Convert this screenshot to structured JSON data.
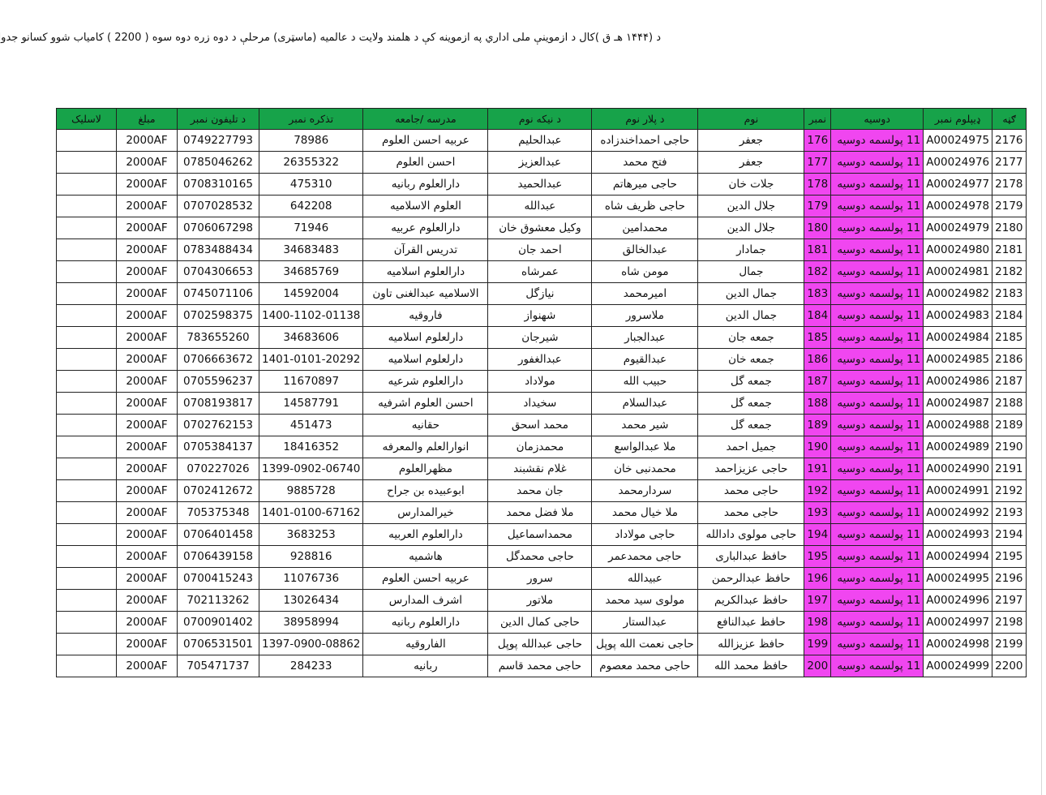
{
  "title": "د (۱۴۴۴ هـ ق )کال د ازموینې ملی اداري په ازموینه کې د هلمند ولایت د عالمیه (ماسټری) مرحلې  د دوه زره دوه سوه ( 2200 ) کامیاب شوو کسانو جدول",
  "colors": {
    "header": "#17a34a",
    "highlight": "#f046f0"
  },
  "headers": [
    "ګڼه",
    "ډیپلوم نمبر",
    "دوسیه",
    "نمبر",
    "نوم",
    "د پلار نوم",
    "د نیکه نوم",
    "مدرسه /جامعه",
    "تذکره نمبر",
    "د تلیفون نمبر",
    "مبلغ",
    "لاسلیک"
  ],
  "rows": [
    [
      "2176",
      "A00024975",
      "11 پولسمه دوسیه",
      "176",
      "جعفر",
      "حاجی احمداخندزاده",
      "عبدالحلیم",
      "عربیه احسن العلوم",
      "78986",
      "0749227793",
      "2000AF",
      ""
    ],
    [
      "2177",
      "A00024976",
      "11 پولسمه دوسیه",
      "177",
      "جعفر",
      "فتح محمد",
      "عبدالعزیز",
      "احسن العلوم",
      "26355322",
      "0785046262",
      "2000AF",
      ""
    ],
    [
      "2178",
      "A00024977",
      "11 پولسمه دوسیه",
      "178",
      "جلات خان",
      "حاجی میرهاتم",
      "عبدالحمید",
      "دارالعلوم ربانیه",
      "475310",
      "0708310165",
      "2000AF",
      ""
    ],
    [
      "2179",
      "A00024978",
      "11 پولسمه دوسیه",
      "179",
      "جلال الدین",
      "حاجی ظریف شاه",
      "عبدالله",
      "العلوم الاسلامیه",
      "642208",
      "0707028532",
      "2000AF",
      ""
    ],
    [
      "2180",
      "A00024979",
      "11 پولسمه دوسیه",
      "180",
      "جلال الدین",
      "محمدامین",
      "وکیل معشوق خان",
      "دارالعلوم عربیه",
      "71946",
      "0706067298",
      "2000AF",
      ""
    ],
    [
      "2181",
      "A00024980",
      "11 پولسمه دوسیه",
      "181",
      "جمادار",
      "عبدالخالق",
      "احمد جان",
      "تدریس القرآن",
      "34683483",
      "0783488434",
      "2000AF",
      ""
    ],
    [
      "2182",
      "A00024981",
      "11 پولسمه دوسیه",
      "182",
      "جمال",
      "مومن شاه",
      "عمرشاه",
      "دارالعلوم اسلامیه",
      "34685769",
      "0704306653",
      "2000AF",
      ""
    ],
    [
      "2183",
      "A00024982",
      "11 پولسمه دوسیه",
      "183",
      "جمال الدین",
      "امیرمحمد",
      "نیازگل",
      "الاسلامیه عبدالغنی تاون",
      "14592004",
      "0745071106",
      "2000AF",
      ""
    ],
    [
      "2184",
      "A00024983",
      "11 پولسمه دوسیه",
      "184",
      "جمال الدین",
      "ملاسرور",
      "شهنواز",
      "فاروقیه",
      "1400-1102-01138",
      "0702598375",
      "2000AF",
      ""
    ],
    [
      "2185",
      "A00024984",
      "11 پولسمه دوسیه",
      "185",
      "جمعه جان",
      "عبدالجبار",
      "شیرجان",
      "دارلعلوم اسلامیه",
      "34683606",
      "783655260",
      "2000AF",
      ""
    ],
    [
      "2186",
      "A00024985",
      "11 پولسمه دوسیه",
      "186",
      "جمعه خان",
      "عبدالقیوم",
      "عبدالغفور",
      "دارلعلوم اسلامیه",
      "1401-0101-20292",
      "0706663672",
      "2000AF",
      ""
    ],
    [
      "2187",
      "A00024986",
      "11 پولسمه دوسیه",
      "187",
      "جمعه گل",
      "حبیب الله",
      "مولاداد",
      "دارالعلوم شرعیه",
      "11670897",
      "0705596237",
      "2000AF",
      ""
    ],
    [
      "2188",
      "A00024987",
      "11 پولسمه دوسیه",
      "188",
      "جمعه گل",
      "عبدالسلام",
      "سخیداد",
      "احسن العلوم اشرفیه",
      "14587791",
      "0708193817",
      "2000AF",
      ""
    ],
    [
      "2189",
      "A00024988",
      "11 پولسمه دوسیه",
      "189",
      "جمعه گل",
      "شیر محمد",
      "محمد اسحق",
      "حقانیه",
      "451473",
      "0702762153",
      "2000AF",
      ""
    ],
    [
      "2190",
      "A00024989",
      "11 پولسمه دوسیه",
      "190",
      "جمیل احمد",
      "ملا عبدالواسع",
      "محمدزمان",
      "انوارالعلم والمعرفه",
      "18416352",
      "0705384137",
      "2000AF",
      ""
    ],
    [
      "2191",
      "A00024990",
      "11 پولسمه دوسیه",
      "191",
      "حاجی عزیزاحمد",
      "محمدنبی خان",
      "غلام نقشبند",
      "مظهرالعلوم",
      "1399-0902-06740",
      "070227026",
      "2000AF",
      ""
    ],
    [
      "2192",
      "A00024991",
      "11 پولسمه دوسیه",
      "192",
      "حاجی محمد",
      "سردارمحمد",
      "جان محمد",
      "ابوعبیده بن جراح",
      "9885728",
      "0702412672",
      "2000AF",
      ""
    ],
    [
      "2193",
      "A00024992",
      "11 پولسمه دوسیه",
      "193",
      "حاجی محمد",
      "ملا خیال محمد",
      "ملا فضل محمد",
      "خیرالمدارس",
      "1401-0100-67162",
      "705375348",
      "2000AF",
      ""
    ],
    [
      "2194",
      "A00024993",
      "11 پولسمه دوسیه",
      "194",
      "حاجی مولوی دادالله",
      "حاجی مولاداد",
      "محمداسماعیل",
      "دارالعلوم العربیه",
      "3683253",
      "0706401458",
      "2000AF",
      ""
    ],
    [
      "2195",
      "A00024994",
      "11 پولسمه دوسیه",
      "195",
      "حافظ عبدالباری",
      "حاجی محمدعمر",
      "حاجی محمدگل",
      "هاشمیه",
      "928816",
      "0706439158",
      "2000AF",
      ""
    ],
    [
      "2196",
      "A00024995",
      "11 پولسمه دوسیه",
      "196",
      "حافظ عبدالرحمن",
      "عبیدالله",
      "سرور",
      "عربیه احسن العلوم",
      "11076736",
      "0700415243",
      "2000AF",
      ""
    ],
    [
      "2197",
      "A00024996",
      "11 پولسمه دوسیه",
      "197",
      "حافظ عبدالکریم",
      "مولوی سید محمد",
      "ملاتور",
      "اشرف المدارس",
      "13026434",
      "702113262",
      "2000AF",
      ""
    ],
    [
      "2198",
      "A00024997",
      "11 پولسمه دوسیه",
      "198",
      "حافظ عبدالنافع",
      "عبدالستار",
      "حاجی کمال الدین",
      "دارالعلوم ربانیه",
      "38958994",
      "0700901402",
      "2000AF",
      ""
    ],
    [
      "2199",
      "A00024998",
      "11 پولسمه دوسیه",
      "199",
      "حافظ عزیزالله",
      "حاجی نعمت الله پوپل",
      "حاجی عبدالله پوپل",
      "الفاروقیه",
      "1397-0900-08862",
      "0706531501",
      "2000AF",
      ""
    ],
    [
      "2200",
      "A00024999",
      "11 پولسمه دوسیه",
      "200",
      "حافظ محمد الله",
      "حاجی محمد معصوم",
      "حاجی محمد قاسم",
      "ربانیه",
      "284233",
      "705471737",
      "2000AF",
      ""
    ]
  ]
}
